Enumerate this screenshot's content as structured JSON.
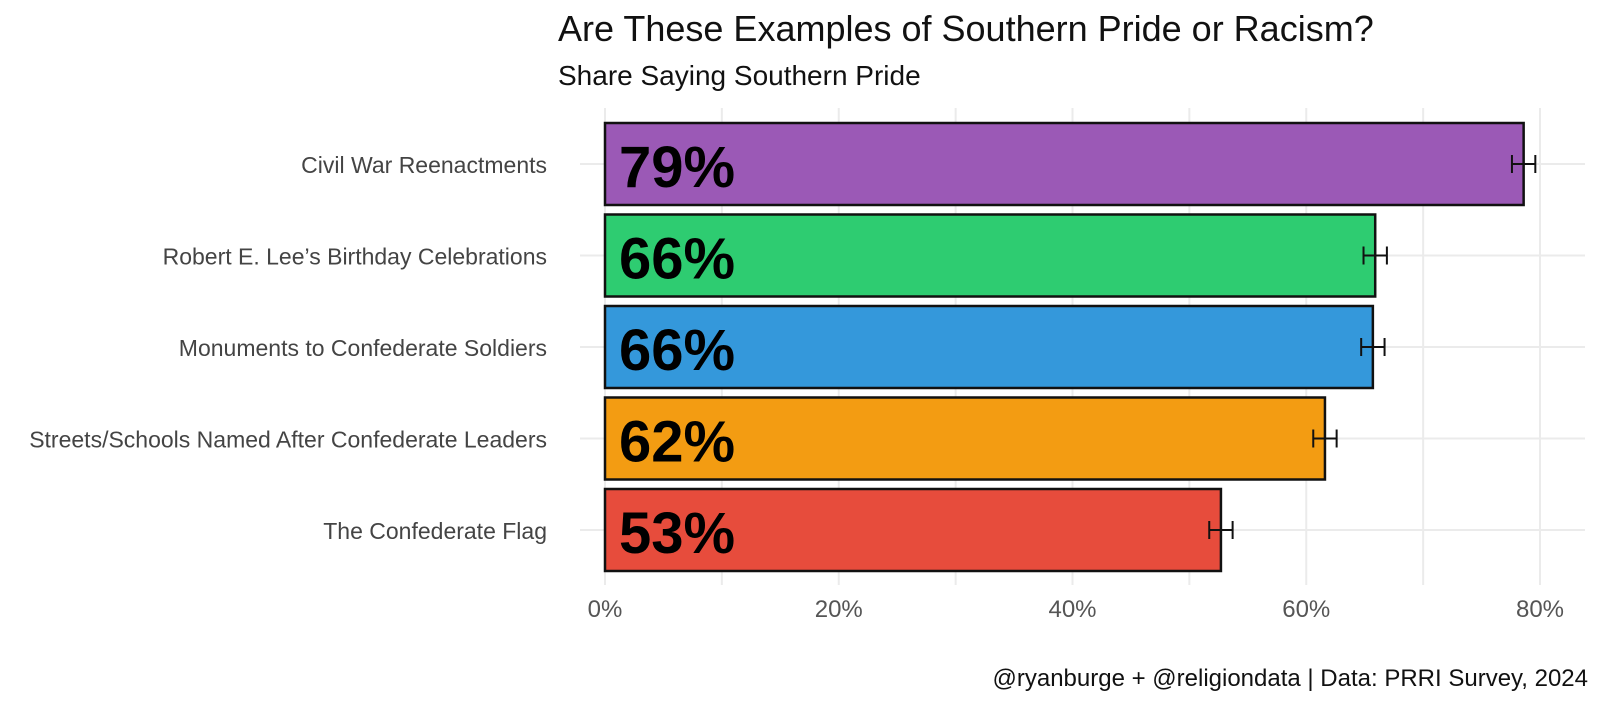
{
  "title": "Are These Examples of Southern Pride or Racism?",
  "subtitle": "Share Saying Southern Pride",
  "caption": "@ryanburge + @religiondata | Data: PRRI Survey, 2024",
  "chart_data": {
    "type": "bar",
    "orientation": "horizontal",
    "title": "Are These Examples of Southern Pride or Racism?",
    "subtitle": "Share Saying Southern Pride",
    "xlabel": "",
    "ylabel": "",
    "xlim": [
      0,
      0.83
    ],
    "x_ticks": [
      0,
      0.2,
      0.4,
      0.6,
      0.8
    ],
    "x_tick_labels": [
      "0%",
      "20%",
      "40%",
      "60%",
      "80%"
    ],
    "grid": true,
    "legend": "none",
    "categories": [
      "Civil War Reenactments",
      "Robert E. Lee’s Birthday Celebrations",
      "Monuments to Confederate Soldiers",
      "Streets/Schools Named After Confederate Leaders",
      "The Confederate Flag"
    ],
    "values": [
      0.786,
      0.659,
      0.657,
      0.616,
      0.527
    ],
    "error_low": [
      0.776,
      0.649,
      0.647,
      0.606,
      0.517
    ],
    "error_high": [
      0.796,
      0.669,
      0.667,
      0.626,
      0.537
    ],
    "data_labels": [
      "79%",
      "66%",
      "66%",
      "62%",
      "53%"
    ],
    "colors": [
      "#9b59b6",
      "#2ecc71",
      "#3498db",
      "#f39c12",
      "#e74c3c"
    ]
  }
}
